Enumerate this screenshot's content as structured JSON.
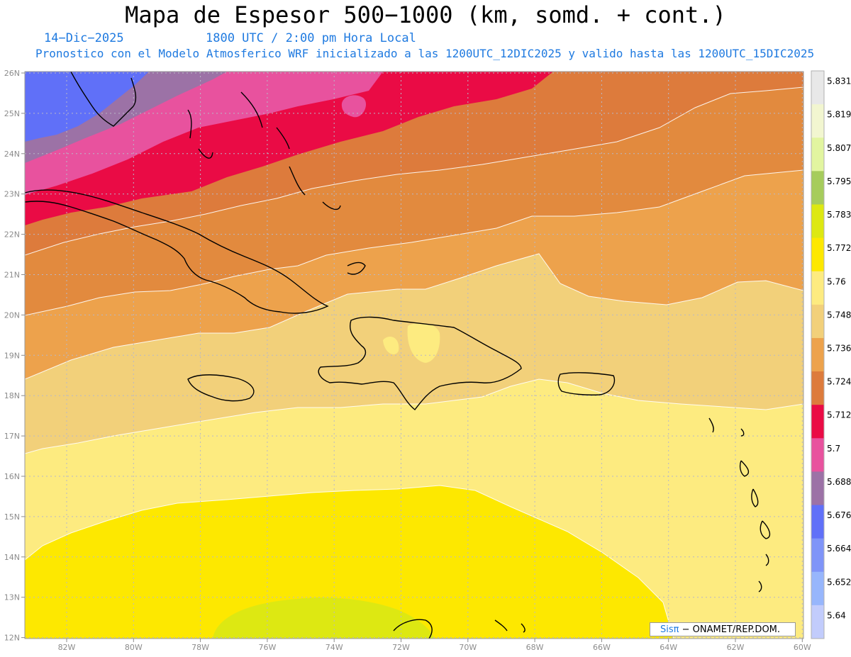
{
  "header": {
    "title": "Mapa de Espesor 500−1000 (km, somd. + cont.)",
    "date": "14−Dic−2025",
    "time": "1800 UTC / 2:00 pm Hora Local",
    "forecast": "Pronostico con el Modelo Atmosferico WRF inicializado a las 1200UTC_12DIC2025 y valido hasta las  1200UTC_15DIC2025"
  },
  "axes": {
    "lat_labels": [
      "26N",
      "25N",
      "24N",
      "23N",
      "22N",
      "21N",
      "20N",
      "19N",
      "18N",
      "17N",
      "16N",
      "15N",
      "14N",
      "13N",
      "12N"
    ],
    "lon_labels": [
      "82W",
      "80W",
      "78W",
      "76W",
      "74W",
      "72W",
      "70W",
      "68W",
      "66W",
      "64W",
      "62W",
      "60W"
    ]
  },
  "colorbar": {
    "labels": [
      "5.831",
      "5.819",
      "5.807",
      "5.795",
      "5.783",
      "5.772",
      "5.76",
      "5.748",
      "5.736",
      "5.724",
      "5.712",
      "5.7",
      "5.688",
      "5.676",
      "5.664",
      "5.652",
      "5.64"
    ],
    "colors": [
      "#e8e8e8",
      "#f2f6d0",
      "#e2f5a0",
      "#a6cc5c",
      "#dde812",
      "#fde800",
      "#fdeb80",
      "#f2d07a",
      "#eda24c",
      "#dd7b3c",
      "#ea0b45",
      "#e8529e",
      "#9c72a6",
      "#6070f8",
      "#7f94f8",
      "#97b6fc",
      "#c2ccfc"
    ]
  },
  "map": {
    "bands": [
      "#fde800",
      "#fdeb80",
      "#f2d07a",
      "#eda24c",
      "#e28a3e",
      "#dd7b3c",
      "#ea0b45",
      "#e8529e",
      "#9c72a6",
      "#6070f8"
    ],
    "low_patch_color": "#dde812",
    "grid_color": "#b8b8c8",
    "coast_color": "#000000",
    "lines_color": "#ffffff"
  },
  "credit": {
    "brand": "Sisπ",
    "org": "− ONAMET/REP.DOM."
  }
}
